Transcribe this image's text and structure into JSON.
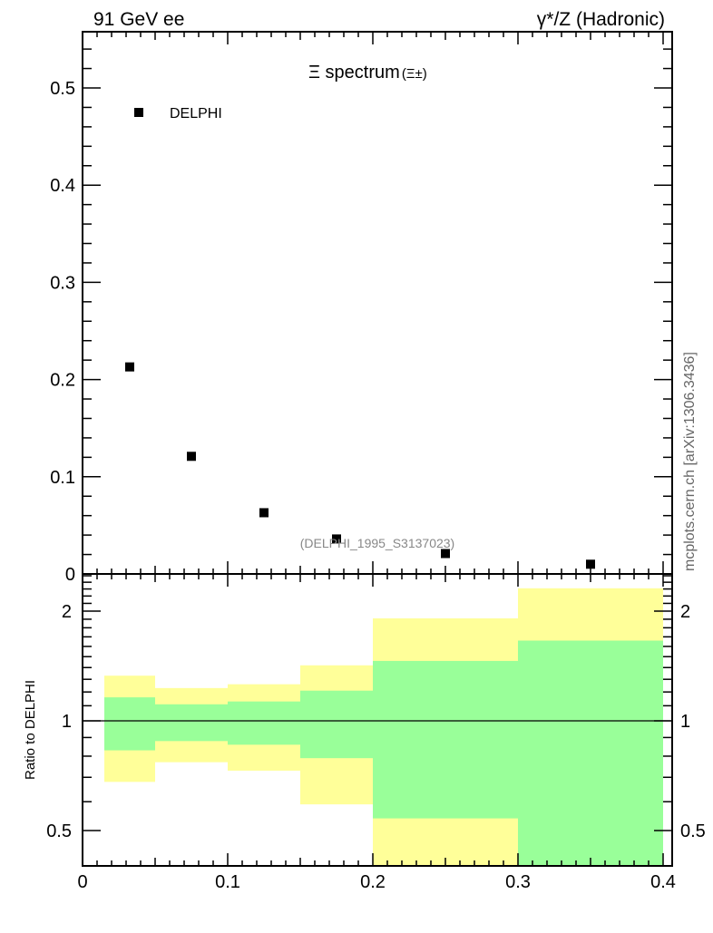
{
  "chart_data": [
    {
      "type": "scatter",
      "header_left": "91 GeV ee",
      "header_right": "γ*/Z (Hadronic)",
      "title": "Ξ spectrum",
      "title_suffix": "(Ξ±)",
      "analysis_id": "(DELPHI_1995_S3137023)",
      "side_label": "mcplots.cern.ch [arXiv:1306.3436]",
      "legend": [
        {
          "name": "DELPHI",
          "marker": "square",
          "color": "#000000"
        }
      ],
      "legend_placement": "top-left",
      "ylim": [
        0,
        0.555
      ],
      "yticks": [
        0,
        0.1,
        0.2,
        0.3,
        0.4,
        0.5
      ],
      "ytick_labels": [
        "0",
        "0.1",
        "0.2",
        "0.3",
        "0.4",
        "0.5"
      ],
      "series": [
        {
          "name": "DELPHI",
          "x": [
            0.0325,
            0.075,
            0.125,
            0.175,
            0.25,
            0.35
          ],
          "y": [
            0.213,
            0.121,
            0.063,
            0.036,
            0.021,
            0.01
          ]
        }
      ]
    },
    {
      "type": "area",
      "ylabel": "Ratio to DELPHI",
      "yscale": "log",
      "ylim": [
        0.4,
        2.53
      ],
      "yticks": [
        0.5,
        1,
        2
      ],
      "ytick_labels": [
        "0.5",
        "1",
        "2"
      ],
      "xlim": [
        0,
        0.41
      ],
      "xticks": [
        0,
        0.1,
        0.2,
        0.3,
        0.4
      ],
      "xtick_labels": [
        "0",
        "0.1",
        "0.2",
        "0.3",
        "0.4"
      ],
      "reference_line": 1,
      "colors": {
        "outer_band": "#ffff99",
        "inner_band": "#99ff99"
      },
      "bins": [
        {
          "lo": 0.015,
          "hi": 0.05,
          "outer": [
            0.68,
            1.33
          ],
          "inner": [
            0.83,
            1.16
          ]
        },
        {
          "lo": 0.05,
          "hi": 0.1,
          "outer": [
            0.77,
            1.23
          ],
          "inner": [
            0.88,
            1.11
          ]
        },
        {
          "lo": 0.1,
          "hi": 0.15,
          "outer": [
            0.73,
            1.26
          ],
          "inner": [
            0.86,
            1.13
          ]
        },
        {
          "lo": 0.15,
          "hi": 0.2,
          "outer": [
            0.59,
            1.42
          ],
          "inner": [
            0.79,
            1.21
          ]
        },
        {
          "lo": 0.2,
          "hi": 0.3,
          "outer": [
            0.3,
            1.91
          ],
          "inner": [
            0.54,
            1.46
          ]
        },
        {
          "lo": 0.3,
          "hi": 0.4,
          "outer": [
            0.3,
            2.31
          ],
          "inner": [
            0.3,
            1.66
          ]
        }
      ]
    }
  ]
}
